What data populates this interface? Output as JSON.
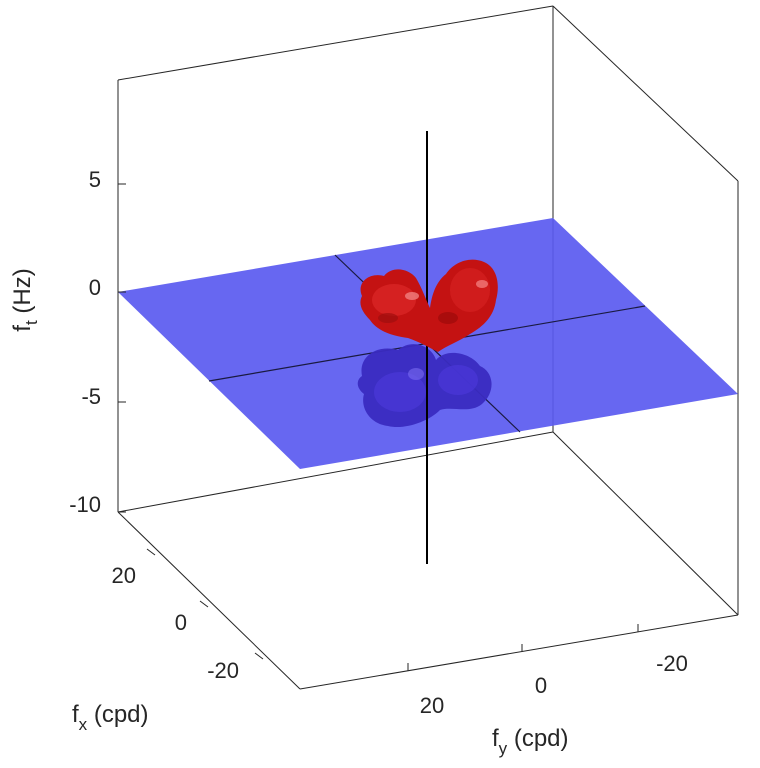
{
  "chart_data": {
    "type": "surface3d",
    "title": "",
    "xlabel": "x (cpd)",
    "xlabel_base": "f",
    "xlabel_sub": "x",
    "ylabel_base": "f",
    "ylabel_sub": "y",
    "ylabel_rest": " (cpd)",
    "zlabel_base": "f",
    "zlabel_sub": "t",
    "zlabel_rest": " (Hz)",
    "fx_ticks": [
      "20",
      "0",
      "-20"
    ],
    "fy_ticks": [
      "20",
      "0",
      "-20"
    ],
    "ft_ticks": [
      "5",
      "0",
      "-5",
      "-10"
    ],
    "ft_range": [
      -10,
      8
    ],
    "fx_range": [
      -35,
      35
    ],
    "fy_range": [
      -35,
      35
    ],
    "plane": {
      "ft": 0,
      "color": "#5a5af0",
      "opacity": 0.9
    },
    "isosurface_above": {
      "color": "#cc1414",
      "description_shape": "two lobes"
    },
    "isosurface_below": {
      "color": "#3a2bc0"
    },
    "center_line_color": "#000000",
    "grid": false,
    "legend": "none"
  }
}
